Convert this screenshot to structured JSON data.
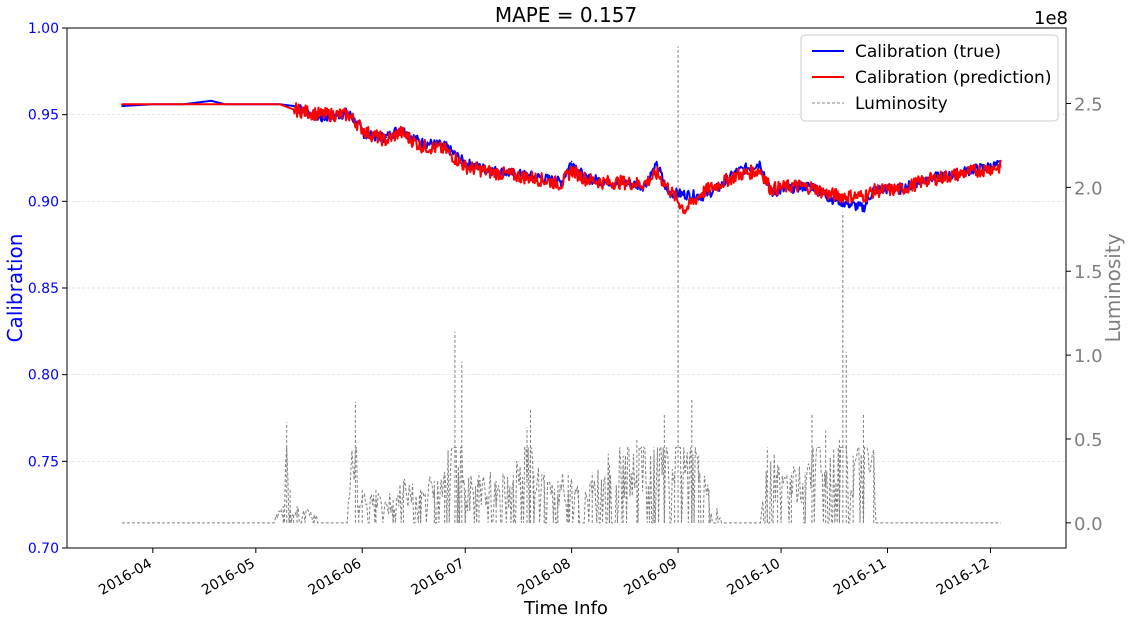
{
  "chart_data": {
    "type": "line",
    "title": "MAPE = 0.157",
    "xlabel": "Time Info",
    "ylabel": "Calibration",
    "y2label": "Luminosity",
    "y2_offset_label": "1e8",
    "xlim": [
      "2016-03-07",
      "2016-12-23"
    ],
    "ylim": [
      0.7,
      1.0
    ],
    "y2lim": [
      -0.15,
      2.95
    ],
    "x_ticks": [
      "2016-04",
      "2016-05",
      "2016-06",
      "2016-07",
      "2016-08",
      "2016-09",
      "2016-10",
      "2016-11",
      "2016-12"
    ],
    "y_ticks": [
      "0.70",
      "0.75",
      "0.80",
      "0.85",
      "0.90",
      "0.95",
      "1.00"
    ],
    "y2_ticks": [
      "0.0",
      "0.5",
      "1.0",
      "1.5",
      "2.0",
      "2.5"
    ],
    "grid": true,
    "legend_position": "top-right",
    "colors": {
      "true": "#0000ff",
      "prediction": "#ff0000",
      "luminosity": "#808080",
      "left_axis": "#0000ff",
      "right_axis": "#808080"
    },
    "series": [
      {
        "name": "Calibration (true)",
        "axis": "left",
        "style": "solid",
        "x": [
          "2016-03-23",
          "2016-04-01",
          "2016-04-10",
          "2016-04-18",
          "2016-04-22",
          "2016-05-01",
          "2016-05-08",
          "2016-05-12",
          "2016-05-20",
          "2016-05-28",
          "2016-06-02",
          "2016-06-08",
          "2016-06-12",
          "2016-06-18",
          "2016-06-25",
          "2016-07-01",
          "2016-07-08",
          "2016-07-15",
          "2016-07-22",
          "2016-07-29",
          "2016-08-01",
          "2016-08-05",
          "2016-08-10",
          "2016-08-15",
          "2016-08-22",
          "2016-08-26",
          "2016-08-29",
          "2016-09-03",
          "2016-09-08",
          "2016-09-13",
          "2016-09-18",
          "2016-09-25",
          "2016-09-28",
          "2016-10-05",
          "2016-10-10",
          "2016-10-15",
          "2016-10-20",
          "2016-10-25",
          "2016-10-28",
          "2016-11-05",
          "2016-11-12",
          "2016-11-20",
          "2016-11-25",
          "2016-12-04"
        ],
        "values": [
          0.955,
          0.956,
          0.956,
          0.958,
          0.956,
          0.956,
          0.956,
          0.955,
          0.948,
          0.951,
          0.938,
          0.937,
          0.942,
          0.934,
          0.932,
          0.922,
          0.918,
          0.916,
          0.914,
          0.911,
          0.923,
          0.913,
          0.912,
          0.911,
          0.909,
          0.921,
          0.905,
          0.904,
          0.903,
          0.908,
          0.917,
          0.922,
          0.905,
          0.908,
          0.909,
          0.902,
          0.899,
          0.896,
          0.907,
          0.907,
          0.913,
          0.915,
          0.918,
          0.921
        ]
      },
      {
        "name": "Calibration (prediction)",
        "axis": "left",
        "style": "solid",
        "x": [
          "2016-03-23",
          "2016-04-01",
          "2016-04-10",
          "2016-04-18",
          "2016-04-22",
          "2016-05-01",
          "2016-05-08",
          "2016-05-12",
          "2016-05-20",
          "2016-05-28",
          "2016-06-02",
          "2016-06-08",
          "2016-06-12",
          "2016-06-18",
          "2016-06-25",
          "2016-07-01",
          "2016-07-08",
          "2016-07-15",
          "2016-07-22",
          "2016-07-29",
          "2016-08-01",
          "2016-08-05",
          "2016-08-10",
          "2016-08-15",
          "2016-08-22",
          "2016-08-26",
          "2016-08-29",
          "2016-09-03",
          "2016-09-08",
          "2016-09-13",
          "2016-09-18",
          "2016-09-25",
          "2016-09-28",
          "2016-10-05",
          "2016-10-10",
          "2016-10-15",
          "2016-10-20",
          "2016-10-25",
          "2016-10-28",
          "2016-11-05",
          "2016-11-12",
          "2016-11-20",
          "2016-11-25",
          "2016-12-04"
        ],
        "values": [
          0.956,
          0.956,
          0.956,
          0.956,
          0.956,
          0.956,
          0.956,
          0.953,
          0.95,
          0.95,
          0.94,
          0.935,
          0.94,
          0.932,
          0.93,
          0.92,
          0.917,
          0.915,
          0.913,
          0.91,
          0.918,
          0.913,
          0.911,
          0.911,
          0.91,
          0.916,
          0.908,
          0.895,
          0.905,
          0.91,
          0.915,
          0.918,
          0.907,
          0.909,
          0.908,
          0.904,
          0.903,
          0.903,
          0.906,
          0.907,
          0.912,
          0.915,
          0.917,
          0.92
        ]
      },
      {
        "name": "Luminosity",
        "axis": "right",
        "style": "dashed",
        "x": [
          "2016-03-23",
          "2016-05-05",
          "2016-05-09",
          "2016-05-10",
          "2016-05-11",
          "2016-05-12",
          "2016-05-13",
          "2016-05-18",
          "2016-05-22",
          "2016-05-27",
          "2016-05-30",
          "2016-05-31",
          "2016-06-01",
          "2016-06-05",
          "2016-06-10",
          "2016-06-13",
          "2016-06-18",
          "2016-06-22",
          "2016-06-25",
          "2016-06-28",
          "2016-06-29",
          "2016-06-30",
          "2016-07-01",
          "2016-07-05",
          "2016-07-10",
          "2016-07-15",
          "2016-07-19",
          "2016-07-20",
          "2016-07-21",
          "2016-07-24",
          "2016-07-28",
          "2016-07-31",
          "2016-08-03",
          "2016-08-07",
          "2016-08-12",
          "2016-08-16",
          "2016-08-20",
          "2016-08-25",
          "2016-08-28",
          "2016-08-31",
          "2016-09-01",
          "2016-09-02",
          "2016-09-05",
          "2016-09-07",
          "2016-09-10",
          "2016-09-15",
          "2016-09-25",
          "2016-09-27",
          "2016-09-30",
          "2016-10-04",
          "2016-10-08",
          "2016-10-10",
          "2016-10-14",
          "2016-10-18",
          "2016-10-19",
          "2016-10-20",
          "2016-10-22",
          "2016-10-25",
          "2016-10-28",
          "2016-10-29",
          "2016-11-15",
          "2016-12-04"
        ],
        "values": [
          0.0,
          0.0,
          0.1,
          0.6,
          0.2,
          0.05,
          0.1,
          0.05,
          0.0,
          0.0,
          0.72,
          0.1,
          0.2,
          0.2,
          0.15,
          0.25,
          0.2,
          0.25,
          0.3,
          1.14,
          0.3,
          0.96,
          0.2,
          0.3,
          0.25,
          0.3,
          0.57,
          0.68,
          0.3,
          0.3,
          0.25,
          0.3,
          0.2,
          0.3,
          0.35,
          0.4,
          0.5,
          0.45,
          0.65,
          0.3,
          2.84,
          0.3,
          0.74,
          0.4,
          0.2,
          0.0,
          0.0,
          0.45,
          0.35,
          0.3,
          0.3,
          0.65,
          0.55,
          0.5,
          1.85,
          1.02,
          0.4,
          0.65,
          0.4,
          0.0,
          0.0,
          0.0
        ]
      }
    ]
  }
}
